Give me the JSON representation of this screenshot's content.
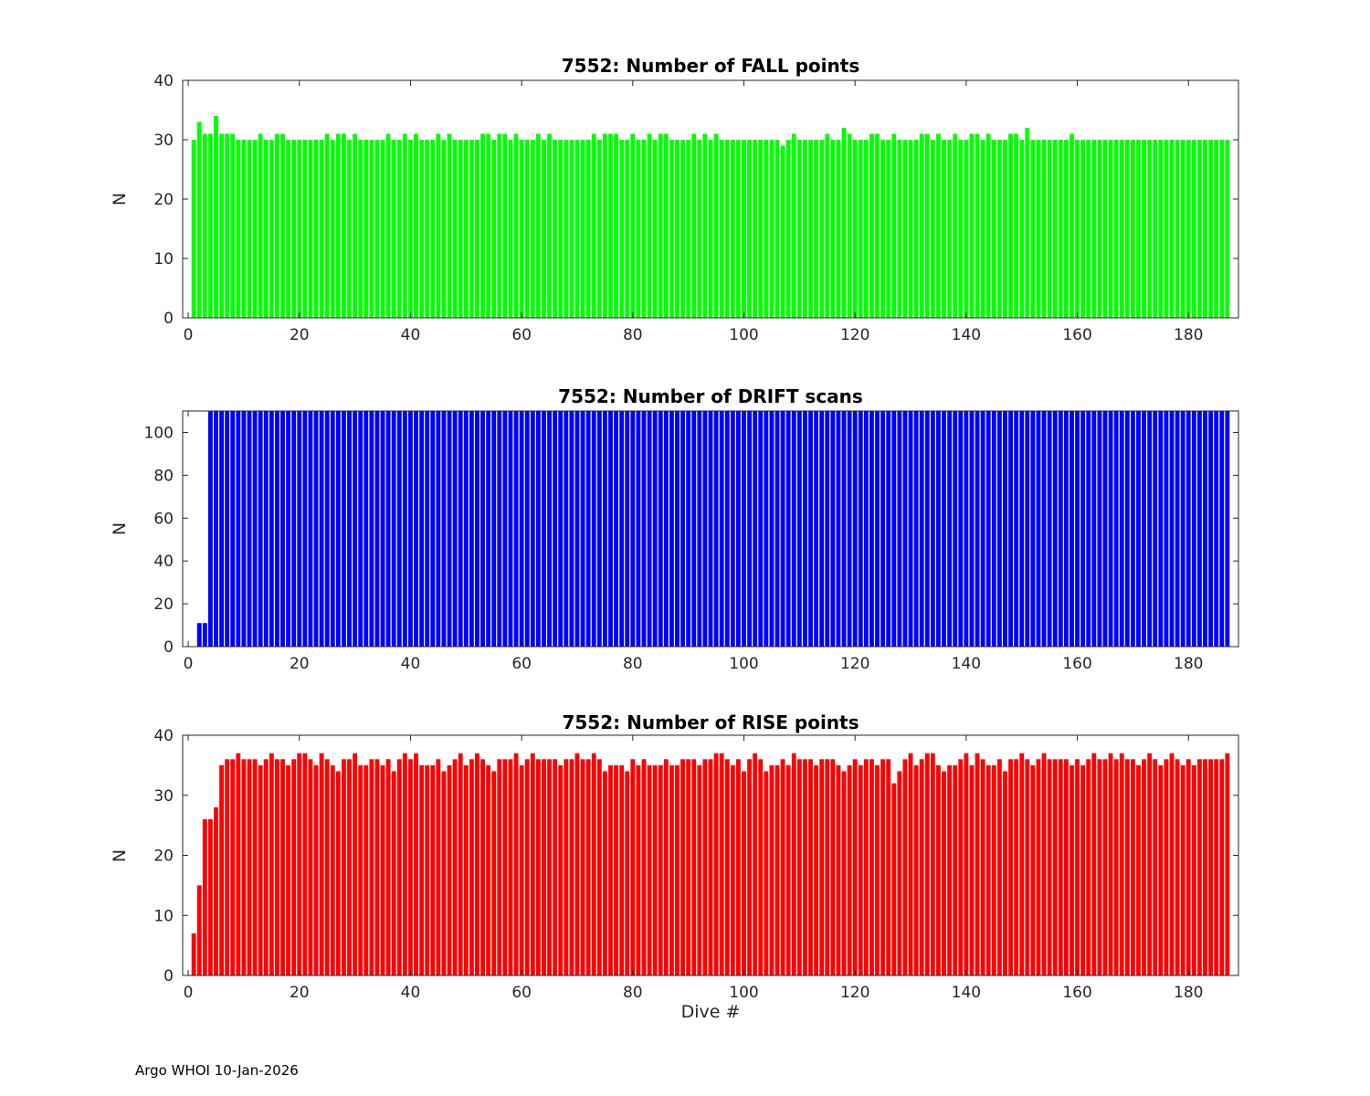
{
  "footer": "Argo WHOI 10-Jan-2026",
  "chart_data": [
    {
      "type": "bar",
      "title": "7552: Number of FALL points",
      "xlabel": "",
      "ylabel": "N",
      "color": "#00ff00",
      "xlim": [
        -1,
        189
      ],
      "ylim": [
        0,
        40
      ],
      "xticks": [
        0,
        20,
        40,
        60,
        80,
        100,
        120,
        140,
        160,
        180
      ],
      "yticks": [
        0,
        10,
        20,
        30,
        40
      ],
      "x_start": 1,
      "values": [
        30,
        33,
        31,
        31,
        34,
        31,
        31,
        31,
        30,
        30,
        30,
        30,
        31,
        30,
        30,
        31,
        31,
        30,
        30,
        30,
        30,
        30,
        30,
        30,
        31,
        30,
        31,
        31,
        30,
        31,
        30,
        30,
        30,
        30,
        30,
        31,
        30,
        30,
        31,
        30,
        31,
        30,
        30,
        30,
        31,
        30,
        31,
        30,
        30,
        30,
        30,
        30,
        31,
        31,
        30,
        31,
        31,
        30,
        31,
        30,
        30,
        30,
        31,
        30,
        31,
        30,
        30,
        30,
        30,
        30,
        30,
        30,
        31,
        30,
        31,
        31,
        31,
        30,
        30,
        31,
        30,
        30,
        31,
        30,
        31,
        31,
        30,
        30,
        30,
        30,
        31,
        30,
        31,
        30,
        31,
        30,
        30,
        30,
        30,
        30,
        30,
        30,
        30,
        30,
        30,
        30,
        29,
        30,
        31,
        30,
        30,
        30,
        30,
        30,
        31,
        30,
        30,
        32,
        31,
        30,
        30,
        30,
        31,
        31,
        30,
        30,
        31,
        30,
        30,
        30,
        30,
        31,
        31,
        30,
        31,
        30,
        30,
        31,
        30,
        30,
        31,
        31,
        30,
        31,
        30,
        30,
        30,
        31,
        31,
        30,
        32,
        30,
        30,
        30,
        30,
        30,
        30,
        30,
        31,
        30,
        30,
        30,
        30,
        30,
        30,
        30,
        30,
        30,
        30,
        30,
        30,
        30,
        30,
        30,
        30,
        30,
        30,
        30,
        30,
        30,
        30,
        30,
        30,
        30,
        30,
        30,
        30
      ]
    },
    {
      "type": "bar",
      "title": "7552: Number of DRIFT scans",
      "xlabel": "",
      "ylabel": "N",
      "color": "#0000ff",
      "xlim": [
        -1,
        189
      ],
      "ylim": [
        0,
        110
      ],
      "xticks": [
        0,
        20,
        40,
        60,
        80,
        100,
        120,
        140,
        160,
        180
      ],
      "yticks": [
        0,
        20,
        40,
        60,
        80,
        100
      ],
      "x_start": 1,
      "values": [
        0,
        11,
        11,
        110,
        110,
        110,
        110,
        110,
        110,
        110,
        110,
        110,
        110,
        110,
        110,
        110,
        110,
        110,
        110,
        110,
        110,
        110,
        110,
        110,
        110,
        110,
        110,
        110,
        110,
        110,
        110,
        110,
        110,
        110,
        110,
        110,
        110,
        110,
        110,
        110,
        110,
        110,
        110,
        110,
        110,
        110,
        110,
        110,
        110,
        110,
        110,
        110,
        110,
        110,
        110,
        110,
        110,
        110,
        110,
        110,
        110,
        110,
        110,
        110,
        110,
        110,
        110,
        110,
        110,
        110,
        110,
        110,
        110,
        110,
        110,
        110,
        110,
        110,
        110,
        110,
        110,
        110,
        110,
        110,
        110,
        110,
        110,
        110,
        110,
        110,
        110,
        110,
        110,
        110,
        110,
        110,
        110,
        110,
        110,
        110,
        110,
        110,
        110,
        110,
        110,
        110,
        110,
        110,
        110,
        110,
        110,
        110,
        110,
        110,
        110,
        110,
        110,
        110,
        110,
        110,
        110,
        110,
        110,
        110,
        110,
        110,
        110,
        110,
        110,
        110,
        110,
        110,
        110,
        110,
        110,
        110,
        110,
        110,
        110,
        110,
        110,
        110,
        110,
        110,
        110,
        110,
        110,
        110,
        110,
        110,
        110,
        110,
        110,
        110,
        110,
        110,
        110,
        110,
        110,
        110,
        110,
        110,
        110,
        110,
        110,
        110,
        110,
        110,
        110,
        110,
        110,
        110,
        110,
        110,
        110,
        110,
        110,
        110,
        110,
        110,
        110,
        110,
        110,
        110,
        110,
        110,
        110
      ]
    },
    {
      "type": "bar",
      "title": "7552: Number of RISE points",
      "xlabel": "Dive #",
      "ylabel": "N",
      "color": "#ff0000",
      "xlim": [
        -1,
        189
      ],
      "ylim": [
        0,
        40
      ],
      "xticks": [
        0,
        20,
        40,
        60,
        80,
        100,
        120,
        140,
        160,
        180
      ],
      "yticks": [
        0,
        10,
        20,
        30,
        40
      ],
      "x_start": 1,
      "values": [
        7,
        15,
        26,
        26,
        28,
        35,
        36,
        36,
        37,
        36,
        36,
        36,
        35,
        36,
        37,
        36,
        36,
        35,
        36,
        37,
        37,
        36,
        35,
        37,
        36,
        35,
        34,
        36,
        36,
        37,
        35,
        35,
        36,
        36,
        35,
        36,
        34,
        36,
        37,
        36,
        37,
        35,
        35,
        35,
        36,
        34,
        35,
        36,
        37,
        35,
        36,
        37,
        36,
        35,
        34,
        36,
        36,
        36,
        37,
        35,
        36,
        37,
        36,
        36,
        36,
        36,
        35,
        36,
        36,
        37,
        36,
        36,
        37,
        36,
        34,
        35,
        35,
        35,
        34,
        36,
        35,
        36,
        35,
        35,
        35,
        36,
        35,
        35,
        36,
        36,
        36,
        35,
        36,
        36,
        37,
        37,
        36,
        35,
        36,
        34,
        36,
        37,
        36,
        34,
        35,
        35,
        36,
        35,
        37,
        36,
        36,
        36,
        35,
        36,
        36,
        36,
        35,
        34,
        35,
        36,
        35,
        36,
        36,
        35,
        36,
        36,
        32,
        34,
        36,
        37,
        35,
        36,
        37,
        37,
        35,
        34,
        35,
        35,
        36,
        37,
        35,
        37,
        36,
        35,
        35,
        36,
        34,
        36,
        36,
        37,
        36,
        35,
        36,
        37,
        36,
        36,
        36,
        36,
        35,
        36,
        35,
        36,
        37,
        36,
        36,
        37,
        36,
        37,
        36,
        36,
        35,
        36,
        37,
        36,
        35,
        36,
        37,
        36,
        35,
        36,
        35,
        36,
        36,
        36,
        36,
        36,
        37
      ]
    }
  ]
}
